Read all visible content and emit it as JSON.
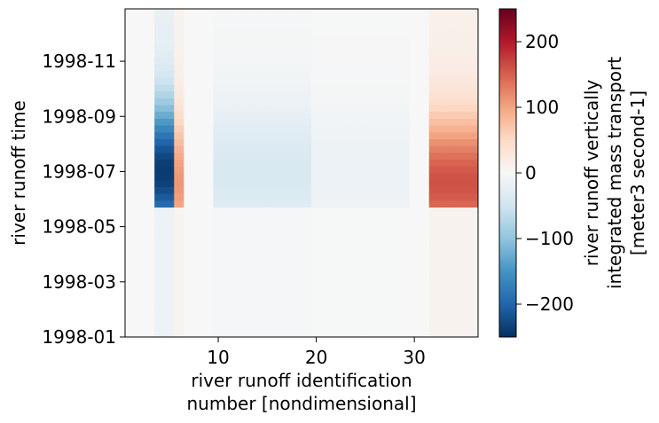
{
  "chart_data": {
    "type": "heatmap",
    "title": "",
    "xlabel": [
      "river runoff identification",
      "number [nondimensional]"
    ],
    "ylabel": "river runoff time",
    "x_range": [
      0.5,
      36.5
    ],
    "x_ticks": [
      10,
      20,
      30
    ],
    "y_ticks": [
      "1998-01",
      "1998-03",
      "1998-05",
      "1998-07",
      "1998-09",
      "1998-11"
    ],
    "y_tick_values": [
      0,
      2,
      4,
      6,
      8,
      10
    ],
    "y_range_months": [
      0,
      11.9
    ],
    "colormap": "RdBu_r",
    "colorbar": {
      "label": [
        "river runoff vertically",
        "integrated mass transport",
        "[meter3 second-1]"
      ],
      "range": [
        -250,
        250
      ],
      "ticks": [
        -200,
        -100,
        0,
        100,
        200
      ],
      "tick_labels": [
        "−200",
        "−100",
        "0",
        "100",
        "200"
      ]
    },
    "features": [
      {
        "ids": [
          4,
          5
        ],
        "description": "strong negative transport",
        "peak": -240,
        "peak_time": "1998-07"
      },
      {
        "ids": [
          6
        ],
        "description": "positive transport",
        "peak": 110,
        "peak_time": "1998-06"
      },
      {
        "ids": [
          10,
          19
        ],
        "description": "weak negative transport",
        "peak": -40,
        "peak_time": "1998-07"
      },
      {
        "ids": [
          20,
          29
        ],
        "description": "weak negative transport",
        "peak": -15,
        "peak_time": "1998-07"
      },
      {
        "ids": [
          32,
          36
        ],
        "description": "strong positive transport",
        "peak": 160,
        "peak_time": "1998-06"
      }
    ]
  }
}
